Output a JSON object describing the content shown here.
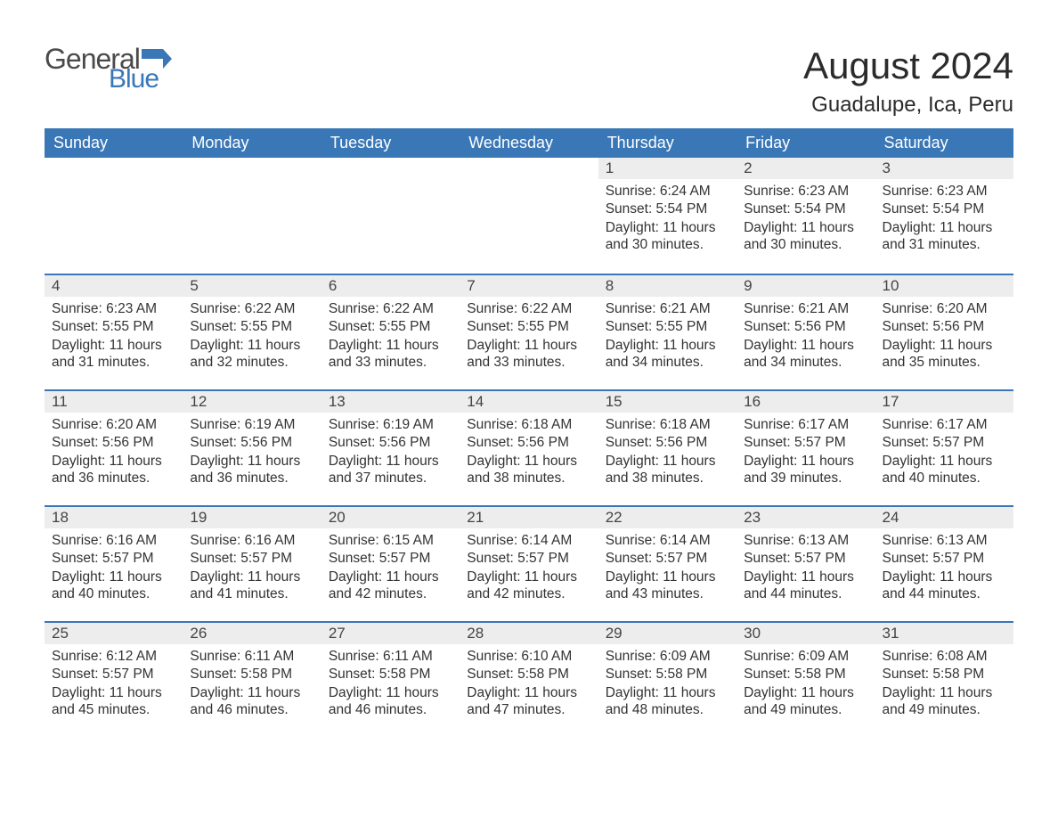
{
  "brand": {
    "part1": "General",
    "part2": "Blue",
    "flag_color": "#3a77b6",
    "text_gray": "#4a4a4a"
  },
  "title": "August 2024",
  "location": "Guadalupe, Ica, Peru",
  "colors": {
    "header_bg": "#3a77b6",
    "header_text": "#ffffff",
    "daynum_bg": "#ededed",
    "daynum_border": "#3a77b6",
    "body_text": "#333333",
    "page_bg": "#ffffff"
  },
  "weekdays": [
    "Sunday",
    "Monday",
    "Tuesday",
    "Wednesday",
    "Thursday",
    "Friday",
    "Saturday"
  ],
  "weeks": [
    [
      null,
      null,
      null,
      null,
      {
        "n": "1",
        "sr": "6:24 AM",
        "ss": "5:54 PM",
        "dl": "11 hours and 30 minutes."
      },
      {
        "n": "2",
        "sr": "6:23 AM",
        "ss": "5:54 PM",
        "dl": "11 hours and 30 minutes."
      },
      {
        "n": "3",
        "sr": "6:23 AM",
        "ss": "5:54 PM",
        "dl": "11 hours and 31 minutes."
      }
    ],
    [
      {
        "n": "4",
        "sr": "6:23 AM",
        "ss": "5:55 PM",
        "dl": "11 hours and 31 minutes."
      },
      {
        "n": "5",
        "sr": "6:22 AM",
        "ss": "5:55 PM",
        "dl": "11 hours and 32 minutes."
      },
      {
        "n": "6",
        "sr": "6:22 AM",
        "ss": "5:55 PM",
        "dl": "11 hours and 33 minutes."
      },
      {
        "n": "7",
        "sr": "6:22 AM",
        "ss": "5:55 PM",
        "dl": "11 hours and 33 minutes."
      },
      {
        "n": "8",
        "sr": "6:21 AM",
        "ss": "5:55 PM",
        "dl": "11 hours and 34 minutes."
      },
      {
        "n": "9",
        "sr": "6:21 AM",
        "ss": "5:56 PM",
        "dl": "11 hours and 34 minutes."
      },
      {
        "n": "10",
        "sr": "6:20 AM",
        "ss": "5:56 PM",
        "dl": "11 hours and 35 minutes."
      }
    ],
    [
      {
        "n": "11",
        "sr": "6:20 AM",
        "ss": "5:56 PM",
        "dl": "11 hours and 36 minutes."
      },
      {
        "n": "12",
        "sr": "6:19 AM",
        "ss": "5:56 PM",
        "dl": "11 hours and 36 minutes."
      },
      {
        "n": "13",
        "sr": "6:19 AM",
        "ss": "5:56 PM",
        "dl": "11 hours and 37 minutes."
      },
      {
        "n": "14",
        "sr": "6:18 AM",
        "ss": "5:56 PM",
        "dl": "11 hours and 38 minutes."
      },
      {
        "n": "15",
        "sr": "6:18 AM",
        "ss": "5:56 PM",
        "dl": "11 hours and 38 minutes."
      },
      {
        "n": "16",
        "sr": "6:17 AM",
        "ss": "5:57 PM",
        "dl": "11 hours and 39 minutes."
      },
      {
        "n": "17",
        "sr": "6:17 AM",
        "ss": "5:57 PM",
        "dl": "11 hours and 40 minutes."
      }
    ],
    [
      {
        "n": "18",
        "sr": "6:16 AM",
        "ss": "5:57 PM",
        "dl": "11 hours and 40 minutes."
      },
      {
        "n": "19",
        "sr": "6:16 AM",
        "ss": "5:57 PM",
        "dl": "11 hours and 41 minutes."
      },
      {
        "n": "20",
        "sr": "6:15 AM",
        "ss": "5:57 PM",
        "dl": "11 hours and 42 minutes."
      },
      {
        "n": "21",
        "sr": "6:14 AM",
        "ss": "5:57 PM",
        "dl": "11 hours and 42 minutes."
      },
      {
        "n": "22",
        "sr": "6:14 AM",
        "ss": "5:57 PM",
        "dl": "11 hours and 43 minutes."
      },
      {
        "n": "23",
        "sr": "6:13 AM",
        "ss": "5:57 PM",
        "dl": "11 hours and 44 minutes."
      },
      {
        "n": "24",
        "sr": "6:13 AM",
        "ss": "5:57 PM",
        "dl": "11 hours and 44 minutes."
      }
    ],
    [
      {
        "n": "25",
        "sr": "6:12 AM",
        "ss": "5:57 PM",
        "dl": "11 hours and 45 minutes."
      },
      {
        "n": "26",
        "sr": "6:11 AM",
        "ss": "5:58 PM",
        "dl": "11 hours and 46 minutes."
      },
      {
        "n": "27",
        "sr": "6:11 AM",
        "ss": "5:58 PM",
        "dl": "11 hours and 46 minutes."
      },
      {
        "n": "28",
        "sr": "6:10 AM",
        "ss": "5:58 PM",
        "dl": "11 hours and 47 minutes."
      },
      {
        "n": "29",
        "sr": "6:09 AM",
        "ss": "5:58 PM",
        "dl": "11 hours and 48 minutes."
      },
      {
        "n": "30",
        "sr": "6:09 AM",
        "ss": "5:58 PM",
        "dl": "11 hours and 49 minutes."
      },
      {
        "n": "31",
        "sr": "6:08 AM",
        "ss": "5:58 PM",
        "dl": "11 hours and 49 minutes."
      }
    ]
  ],
  "labels": {
    "sunrise": "Sunrise: ",
    "sunset": "Sunset: ",
    "daylight": "Daylight: "
  }
}
